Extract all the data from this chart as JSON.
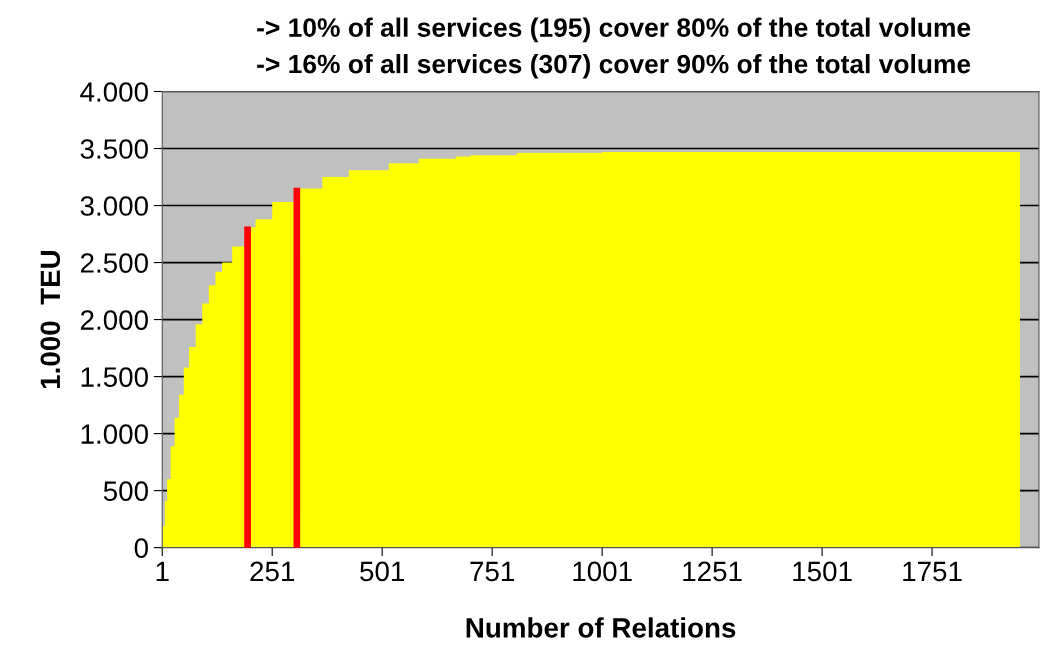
{
  "chart_data": {
    "type": "area",
    "title": "-> 10% of all services (195) cover 80% of the total volume",
    "subtitle": "-> 16% of all services (307) cover 90% of the total volume",
    "xlabel": "Number of Relations",
    "ylabel": "1.000  TEU",
    "series": [
      {
        "color": "#ffff00",
        "x": [
          1,
          2,
          7,
          12,
          20,
          29,
          39,
          50,
          62,
          77,
          92,
          107,
          122,
          137,
          160,
          190,
          213,
          251,
          304,
          365,
          425,
          516,
          584,
          668,
          702,
          807,
          1000,
          1951
        ],
        "values": [
          0,
          190,
          410,
          600,
          890,
          1140,
          1340,
          1580,
          1760,
          1960,
          2140,
          2300,
          2420,
          2500,
          2640,
          2810,
          2880,
          3030,
          3150,
          3250,
          3310,
          3370,
          3410,
          3430,
          3440,
          3460,
          3470,
          3470
        ]
      },
      {
        "type": "bar",
        "color": "#ff0000",
        "x": [
          195,
          307
        ],
        "values": [
          2810,
          3150
        ]
      }
    ],
    "xlim": [
      1,
      1994
    ],
    "xticks": [
      1,
      251,
      501,
      751,
      1001,
      1251,
      1501,
      1751
    ],
    "ylim": [
      0,
      4000
    ],
    "yticks": [
      0,
      500,
      {
        "value": 1000,
        "label": "1.000"
      },
      {
        "value": 1500,
        "label": "1.500"
      },
      {
        "value": 2000,
        "label": "2.000"
      },
      {
        "value": 2500,
        "label": "2.500"
      },
      {
        "value": 3000,
        "label": "3.000"
      },
      {
        "value": 3500,
        "label": "3.500"
      },
      {
        "value": 4000,
        "label": "4.000"
      }
    ],
    "grid": "y"
  }
}
